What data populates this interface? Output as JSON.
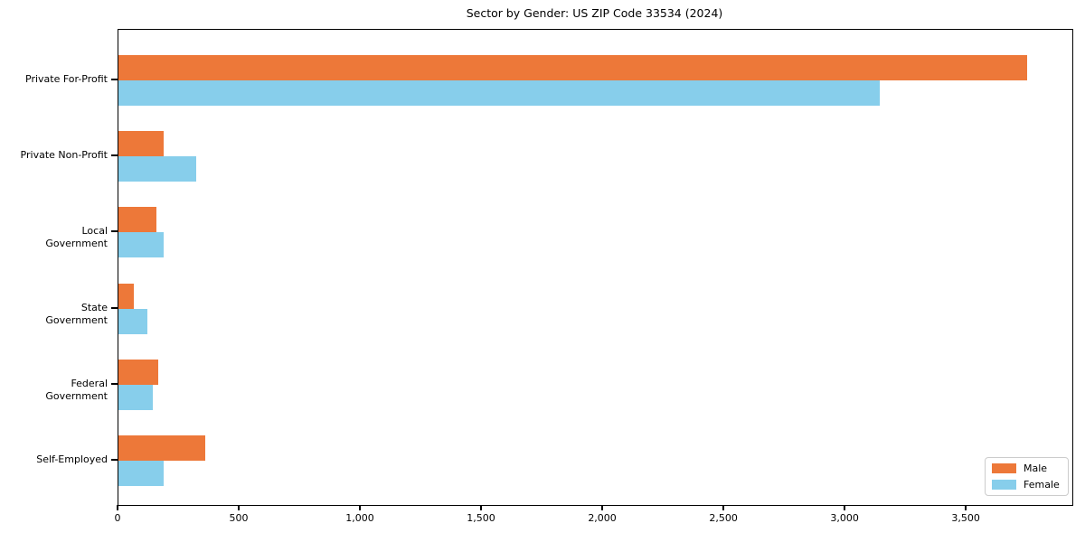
{
  "title": "Sector by Gender: US ZIP Code 33534 (2024)",
  "colors": {
    "male": "#ED7839",
    "female": "#87CEEB",
    "axis": "#000000",
    "legend_border": "#CCCCCC",
    "background": "#FFFFFF"
  },
  "chart_data": {
    "type": "bar",
    "orientation": "horizontal",
    "title": "Sector by Gender: US ZIP Code 33534 (2024)",
    "xlabel": "",
    "ylabel": "",
    "categories": [
      "Private For-Profit",
      "Private Non-Profit",
      "Local Government",
      "State Government",
      "Federal Government",
      "Self-Employed"
    ],
    "series": [
      {
        "name": "Male",
        "color": "#ED7839",
        "values": [
          3750,
          185,
          155,
          65,
          165,
          360
        ]
      },
      {
        "name": "Female",
        "color": "#87CEEB",
        "values": [
          3140,
          320,
          185,
          120,
          140,
          185
        ]
      }
    ],
    "xlim": [
      0,
      3936
    ],
    "xticks": [
      0,
      500,
      1000,
      1500,
      2000,
      2500,
      3000,
      3500
    ],
    "xtick_labels": [
      "0",
      "500",
      "1,000",
      "1,500",
      "2,000",
      "2,500",
      "3,000",
      "3,500"
    ],
    "grid": false,
    "legend": {
      "position": "lower right",
      "entries": [
        "Male",
        "Female"
      ]
    }
  }
}
